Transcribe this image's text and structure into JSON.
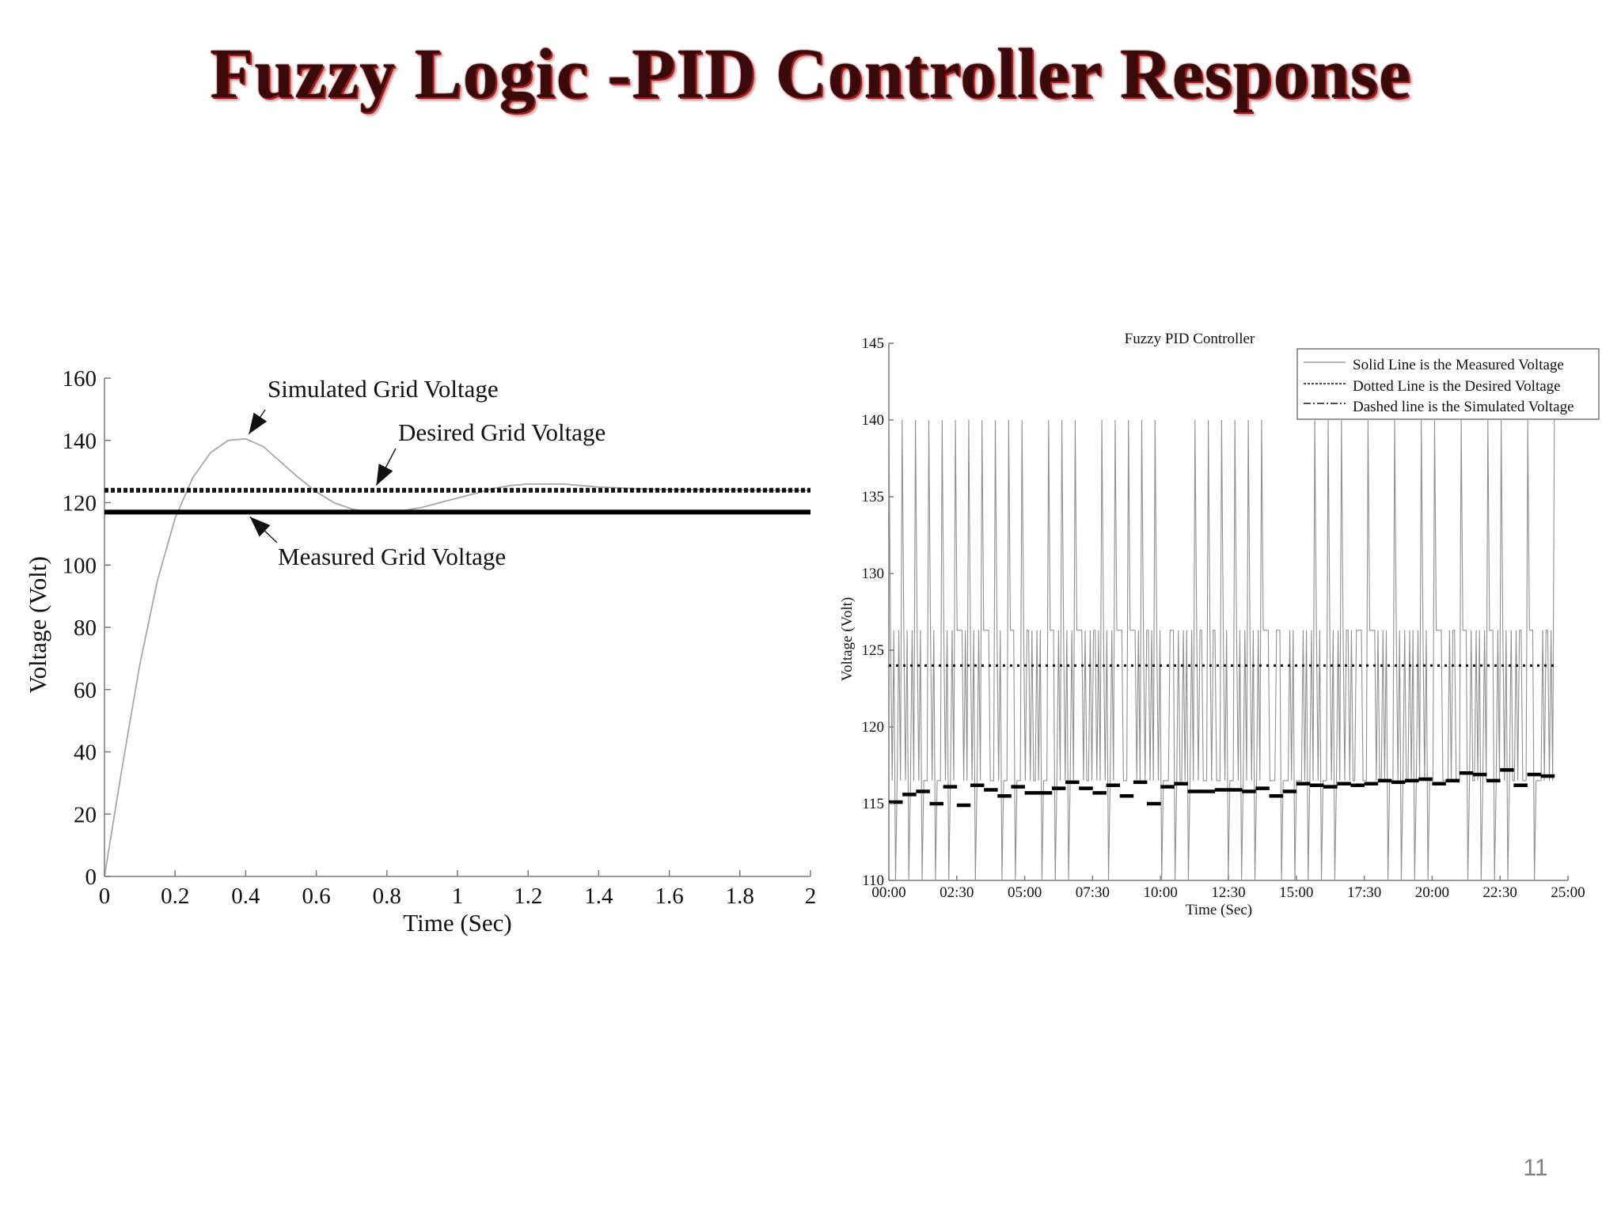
{
  "slide": {
    "title": "Fuzzy Logic -PID Controller Response",
    "page_number": "11"
  },
  "chart_data": [
    {
      "type": "line",
      "title": "",
      "xlabel": "Time (Sec)",
      "ylabel": "Voltage (Volt)",
      "xlim": [
        0,
        2
      ],
      "ylim": [
        0,
        160
      ],
      "x_ticks": [
        "0",
        "0.2",
        "0.4",
        "0.6",
        "0.8",
        "1",
        "1.2",
        "1.4",
        "1.6",
        "1.8",
        "2"
      ],
      "y_ticks": [
        "0",
        "20",
        "40",
        "60",
        "80",
        "100",
        "120",
        "140",
        "160"
      ],
      "series": [
        {
          "name": "Simulated Grid Voltage",
          "style": "thin-solid",
          "color": "#a8a8a8",
          "x": [
            0,
            0.05,
            0.1,
            0.15,
            0.2,
            0.25,
            0.3,
            0.35,
            0.4,
            0.45,
            0.5,
            0.55,
            0.6,
            0.65,
            0.7,
            0.75,
            0.8,
            0.85,
            0.9,
            0.95,
            1.0,
            1.05,
            1.1,
            1.15,
            1.2,
            1.25,
            1.3,
            1.35,
            1.4,
            1.45,
            1.5,
            1.6,
            1.7,
            1.8,
            1.9,
            2.0
          ],
          "y": [
            0,
            35,
            68,
            95,
            115,
            128,
            136,
            140,
            140.5,
            138,
            133,
            128,
            123.5,
            120,
            118,
            117,
            117,
            117.5,
            118.5,
            120,
            121.5,
            123,
            124.5,
            125.5,
            126,
            126,
            126,
            125.5,
            125,
            124.8,
            124.5,
            124.2,
            124.2,
            124.1,
            124,
            124
          ]
        },
        {
          "name": "Desired Grid Voltage",
          "style": "thick-dotted",
          "color": "#111111",
          "x": [
            0,
            2
          ],
          "y": [
            124,
            124
          ]
        },
        {
          "name": "Measured Grid Voltage",
          "style": "thick-solid",
          "color": "#000000",
          "x": [
            0,
            2
          ],
          "y": [
            117,
            117
          ]
        }
      ],
      "annotations": [
        {
          "text": "Simulated Grid Voltage",
          "target": [
            0.4,
            140
          ]
        },
        {
          "text": "Desired Grid Voltage",
          "target": [
            0.77,
            124
          ]
        },
        {
          "text": "Measured Grid Voltage",
          "target": [
            0.43,
            117
          ]
        }
      ]
    },
    {
      "type": "line",
      "title": "Fuzzy PID Controller",
      "xlabel": "Time (Sec)",
      "ylabel": "Voltage (Volt)",
      "xlim": [
        "00:00",
        "25:00"
      ],
      "ylim": [
        110,
        145
      ],
      "x_ticks": [
        "00:00",
        "02:30",
        "05:00",
        "07:30",
        "10:00",
        "12:30",
        "15:00",
        "17:30",
        "20:00",
        "22:30",
        "25:00"
      ],
      "y_ticks": [
        "110",
        "115",
        "120",
        "125",
        "130",
        "135",
        "140",
        "145"
      ],
      "legend": {
        "position": "top-right",
        "entries": [
          {
            "label": "Solid Line is the Measured Voltage",
            "style": "thin-solid"
          },
          {
            "label": "Dotted Line is the Desired Voltage",
            "style": "dotted"
          },
          {
            "label": "Dashed line is the Simulated Voltage",
            "style": "dash-dot"
          }
        ]
      },
      "series": [
        {
          "name": "Solid Line is the Measured Voltage",
          "style": "thin-solid",
          "color": "#909090",
          "description": "rapid oscillation between 110 and 140 with inner cycles between 116.5 and 126.3",
          "range": [
            110,
            140
          ],
          "inner_range": [
            116.5,
            126.3
          ],
          "cycles": 50,
          "x_end": "24:30"
        },
        {
          "name": "Dotted Line is the Desired Voltage",
          "style": "dotted",
          "color": "#111111",
          "x": [
            "00:00",
            "24:30"
          ],
          "y": [
            124,
            124
          ]
        },
        {
          "name": "Dashed line is the Simulated Voltage",
          "style": "thick-dash",
          "color": "#000000",
          "segment_minutes": 0.6,
          "y": [
            115.1,
            115.6,
            115.8,
            115.0,
            116.1,
            114.9,
            116.2,
            115.9,
            115.5,
            116.1,
            115.7,
            115.7,
            116.0,
            116.4,
            116.0,
            115.7,
            116.2,
            115.5,
            116.4,
            115.0,
            116.1,
            116.3,
            115.8,
            115.8,
            115.9,
            115.9,
            115.8,
            116.0,
            115.5,
            115.8,
            116.3,
            116.2,
            116.1,
            116.3,
            116.2,
            116.3,
            116.5,
            116.4,
            116.5,
            116.6,
            116.3,
            116.5,
            117.0,
            116.9,
            116.5,
            117.2,
            116.2,
            116.9,
            116.8
          ]
        }
      ]
    }
  ]
}
